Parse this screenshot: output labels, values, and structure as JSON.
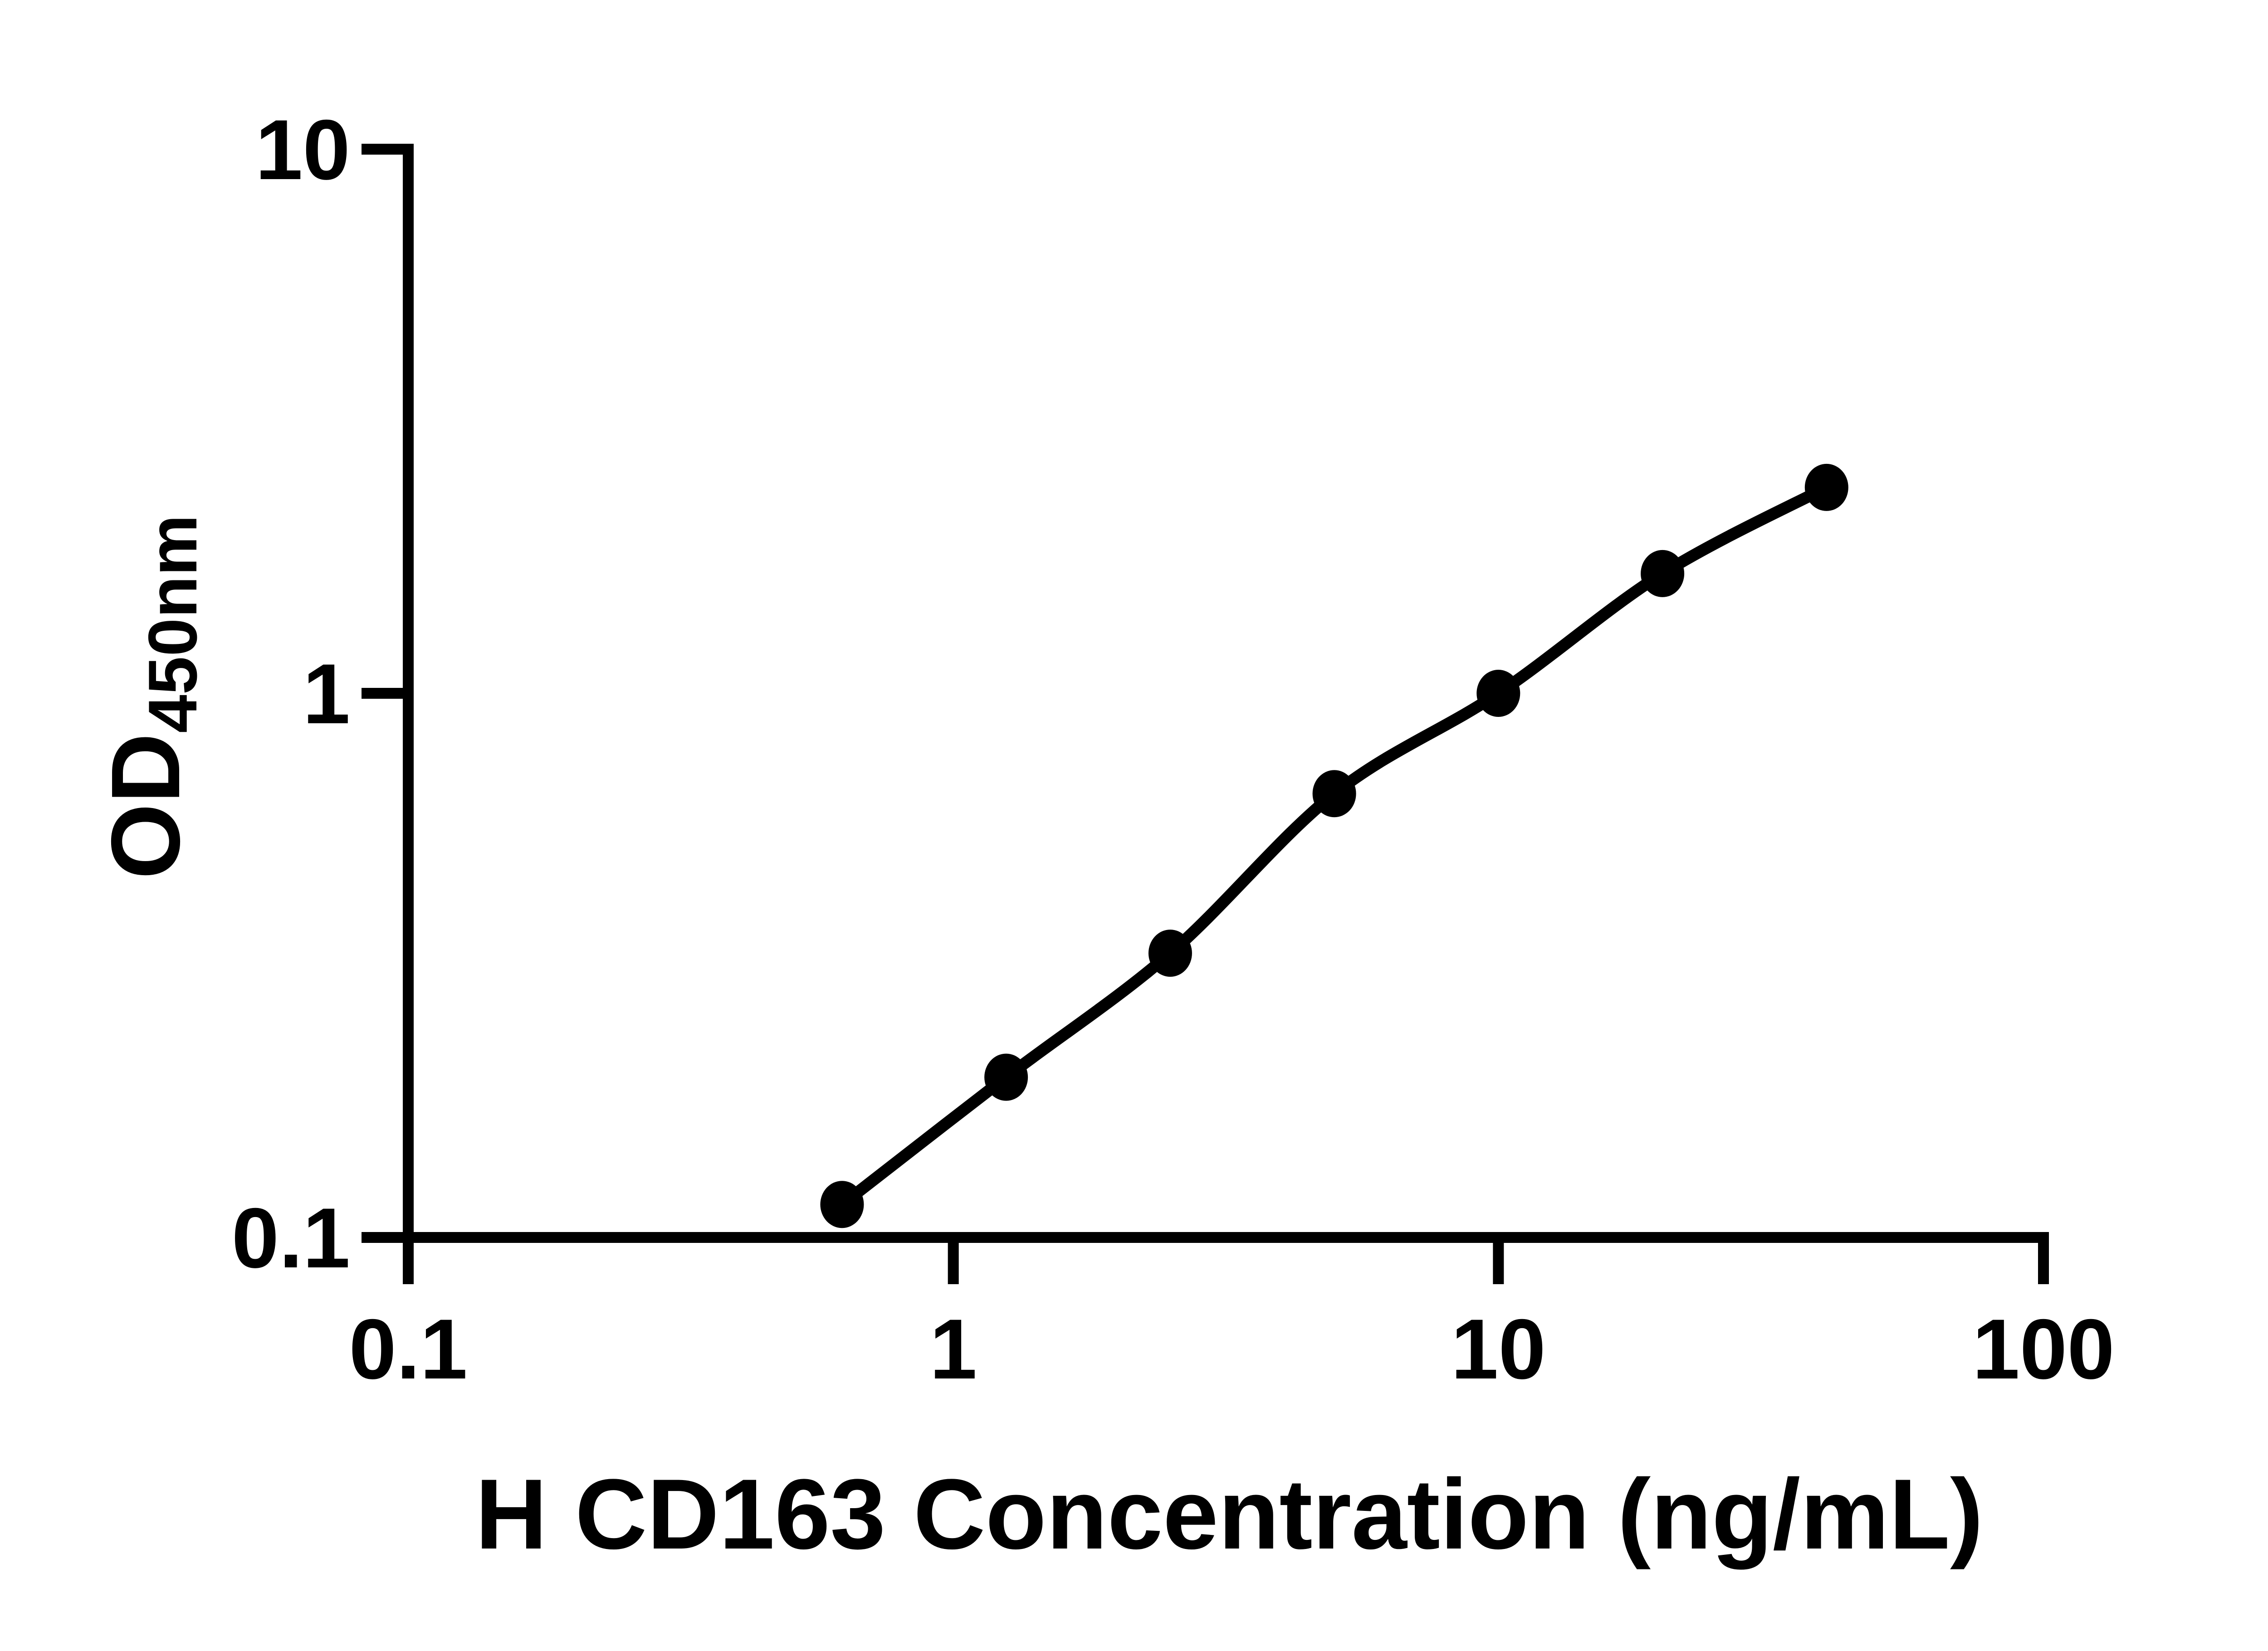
{
  "chart_data": {
    "type": "scatter",
    "title": "",
    "xlabel": "H CD163 Concentration (ng/mL)",
    "ylabel_main": "OD",
    "ylabel_sub": "450nm",
    "series": [
      {
        "name": "standard-curve",
        "x": [
          0.625,
          1.25,
          2.5,
          5,
          10,
          20,
          40
        ],
        "y": [
          0.115,
          0.197,
          0.333,
          0.654,
          1.0,
          1.66,
          2.39
        ]
      }
    ],
    "x_scale": "log",
    "y_scale": "log",
    "xlim": [
      0.1,
      100
    ],
    "ylim": [
      0.1,
      10
    ],
    "x_ticks": [
      0.1,
      1,
      10,
      100
    ],
    "x_tick_labels": [
      "0.1",
      "1",
      "10",
      "100"
    ],
    "y_ticks": [
      10,
      1,
      0.1
    ],
    "y_tick_labels": [
      "10",
      "1",
      "0.1"
    ],
    "grid": false,
    "legend": false,
    "marker": "filled-circle",
    "marker_color": "#000000",
    "line_color": "#000000",
    "axis_color": "#000000",
    "background": "#ffffff"
  }
}
